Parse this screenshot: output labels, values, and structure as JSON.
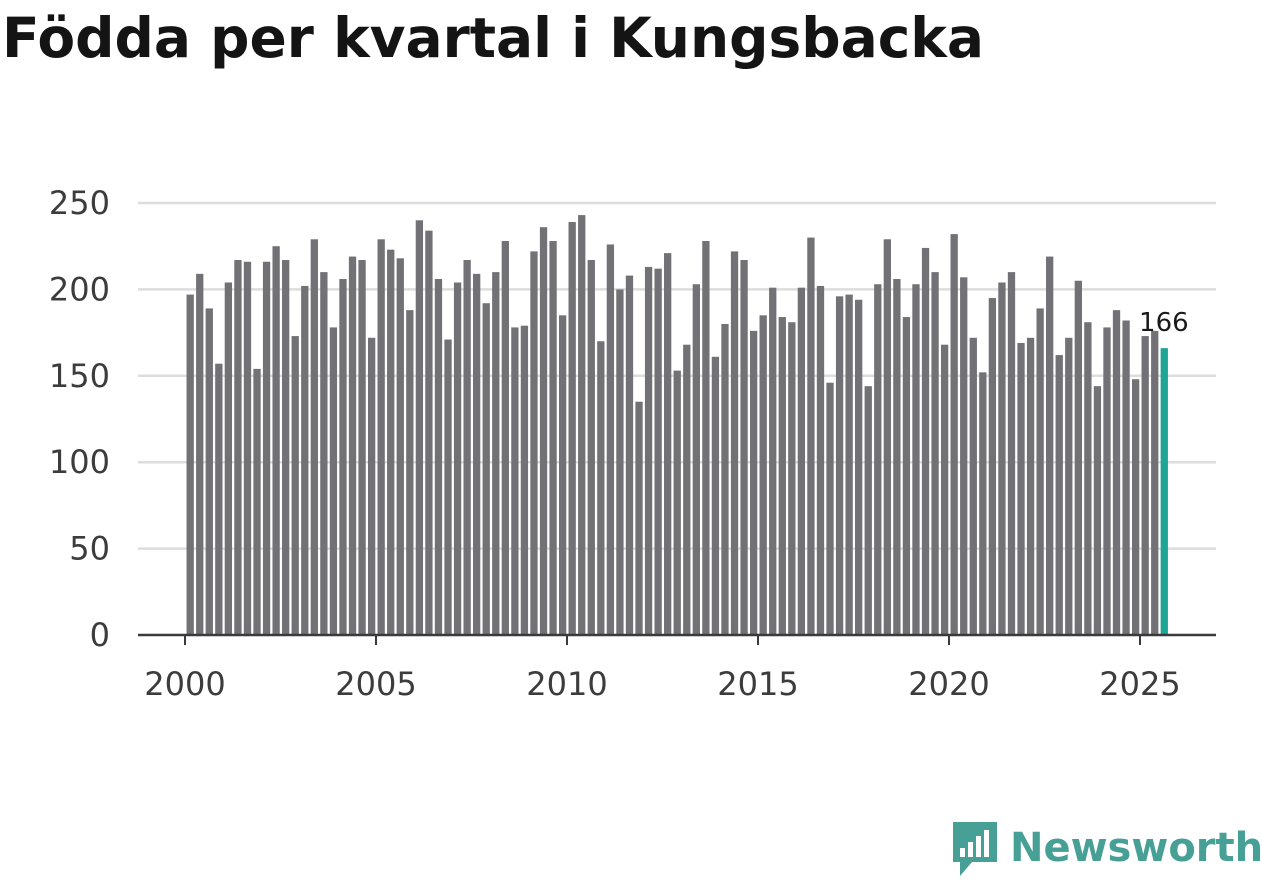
{
  "chart_data": {
    "type": "bar",
    "title": "Födda per kvartal i Kungsbacka",
    "xlabel": "",
    "ylabel": "",
    "ylim": [
      0,
      250
    ],
    "yticks": [
      "0",
      "50",
      "100",
      "150",
      "200",
      "250"
    ],
    "xticks": [
      "2000",
      "2005",
      "2010",
      "2015",
      "2020",
      "2025"
    ],
    "start_year": 2000,
    "series": [
      {
        "name": "Födda",
        "x": [
          "2000 K1",
          "2000 K2",
          "2000 K3",
          "2000 K4",
          "2001 K1",
          "2001 K2",
          "2001 K3",
          "2001 K4",
          "2002 K1",
          "2002 K2",
          "2002 K3",
          "2002 K4",
          "2003 K1",
          "2003 K2",
          "2003 K3",
          "2003 K4",
          "2004 K1",
          "2004 K2",
          "2004 K3",
          "2004 K4",
          "2005 K1",
          "2005 K2",
          "2005 K3",
          "2005 K4",
          "2006 K1",
          "2006 K2",
          "2006 K3",
          "2006 K4",
          "2007 K1",
          "2007 K2",
          "2007 K3",
          "2007 K4",
          "2008 K1",
          "2008 K2",
          "2008 K3",
          "2008 K4",
          "2009 K1",
          "2009 K2",
          "2009 K3",
          "2009 K4",
          "2010 K1",
          "2010 K2",
          "2010 K3",
          "2010 K4",
          "2011 K1",
          "2011 K2",
          "2011 K3",
          "2011 K4",
          "2012 K1",
          "2012 K2",
          "2012 K3",
          "2012 K4",
          "2013 K1",
          "2013 K2",
          "2013 K3",
          "2013 K4",
          "2014 K1",
          "2014 K2",
          "2014 K3",
          "2014 K4",
          "2015 K1",
          "2015 K2",
          "2015 K3",
          "2015 K4",
          "2016 K1",
          "2016 K2",
          "2016 K3",
          "2016 K4",
          "2017 K1",
          "2017 K2",
          "2017 K3",
          "2017 K4",
          "2018 K1",
          "2018 K2",
          "2018 K3",
          "2018 K4",
          "2019 K1",
          "2019 K2",
          "2019 K3",
          "2019 K4",
          "2020 K1",
          "2020 K2",
          "2020 K3",
          "2020 K4",
          "2021 K1",
          "2021 K2",
          "2021 K3",
          "2021 K4",
          "2022 K1",
          "2022 K2",
          "2022 K3",
          "2022 K4",
          "2023 K1",
          "2023 K2",
          "2023 K3",
          "2023 K4",
          "2024 K1",
          "2024 K2",
          "2024 K3",
          "2024 K4",
          "2025 K1",
          "2025 K2",
          "2025 K3"
        ],
        "values": [
          197,
          209,
          189,
          157,
          204,
          217,
          216,
          154,
          216,
          225,
          217,
          173,
          202,
          229,
          210,
          178,
          206,
          219,
          217,
          172,
          229,
          223,
          218,
          188,
          240,
          234,
          206,
          171,
          204,
          217,
          209,
          192,
          210,
          228,
          178,
          179,
          222,
          236,
          228,
          185,
          239,
          243,
          217,
          170,
          226,
          200,
          208,
          135,
          213,
          212,
          221,
          153,
          168,
          203,
          228,
          161,
          180,
          222,
          217,
          176,
          185,
          201,
          184,
          181,
          201,
          230,
          202,
          146,
          196,
          197,
          194,
          144,
          203,
          229,
          206,
          184,
          203,
          224,
          210,
          168,
          232,
          207,
          172,
          152,
          195,
          204,
          210,
          169,
          172,
          189,
          219,
          162,
          172,
          205,
          181,
          144,
          178,
          188,
          182,
          148,
          173,
          176,
          166
        ]
      }
    ],
    "highlight": {
      "label": "166",
      "color": "#1ea595"
    },
    "colors": {
      "bar": "#727176",
      "grid": "#dddddd",
      "axis": "#3a3a3a",
      "text": "#3c3c3c"
    }
  },
  "brand": {
    "name": "Newsworthy",
    "icon": "newsworthy-logo-icon",
    "color": "#47a095"
  }
}
